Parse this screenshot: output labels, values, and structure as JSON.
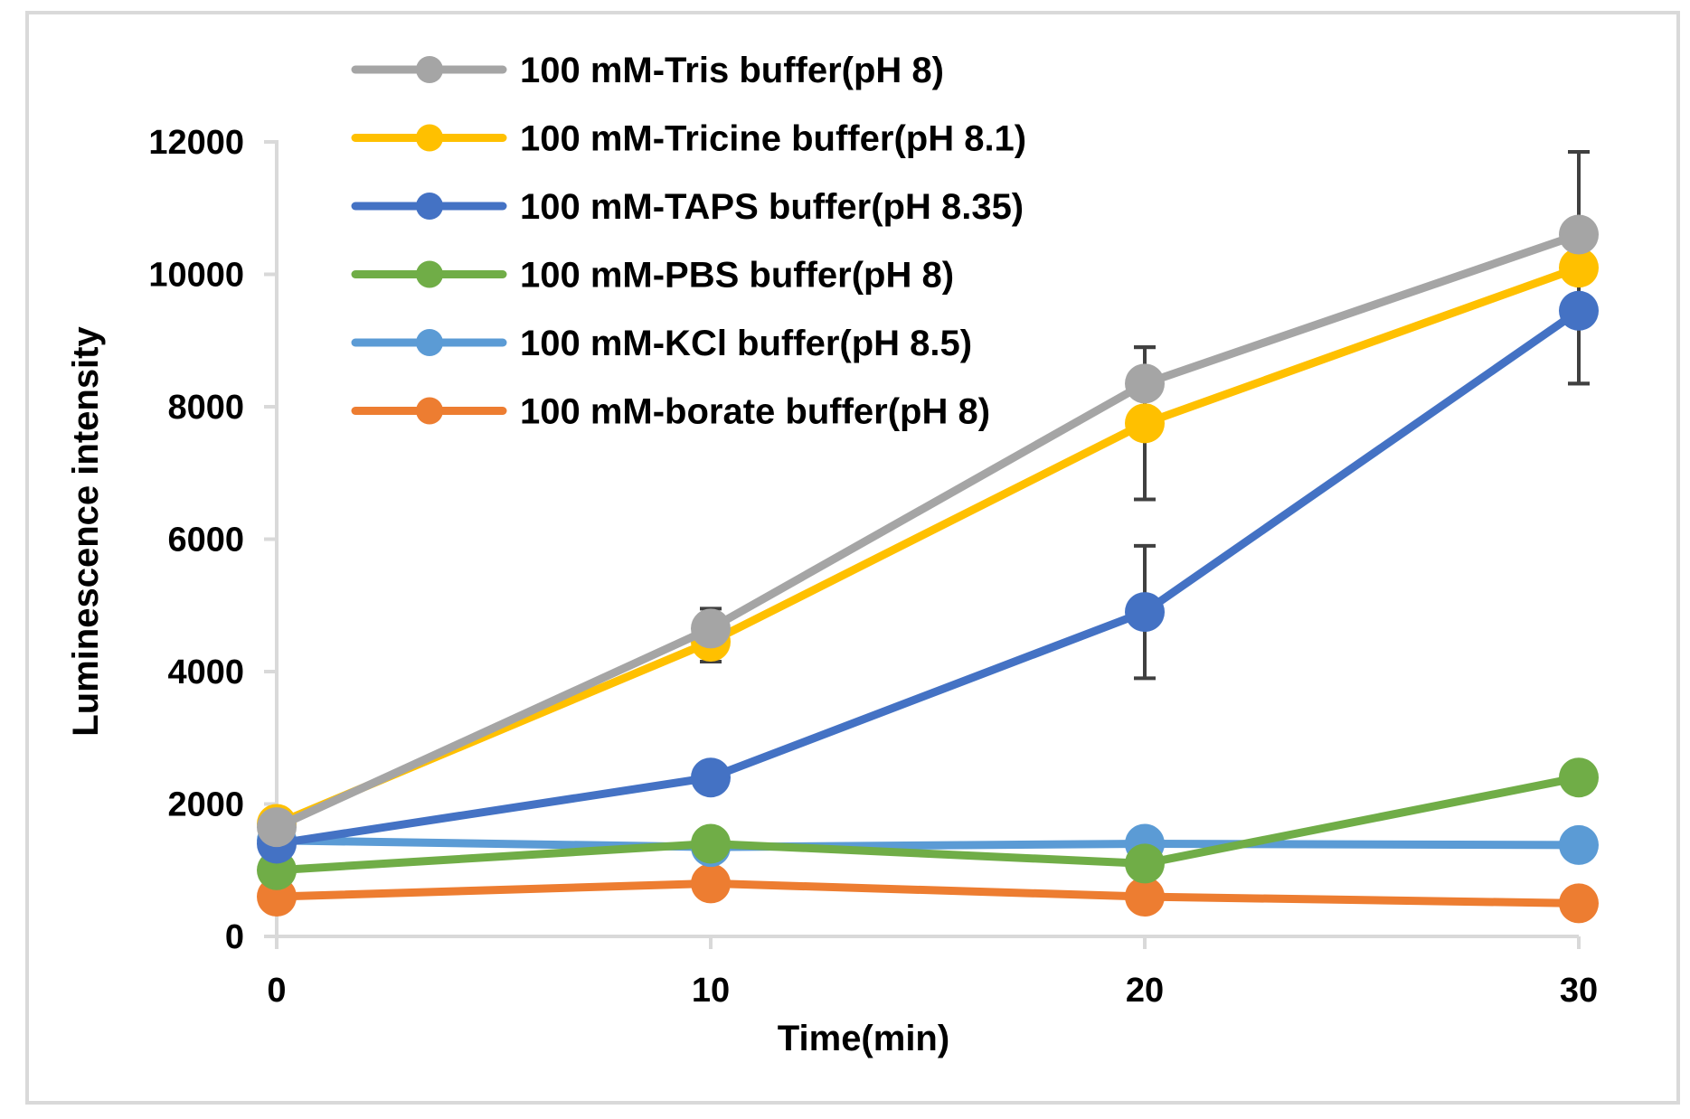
{
  "chart_data": {
    "type": "line",
    "title": "",
    "xlabel": "Time(min)",
    "ylabel": "Luminescence intensity",
    "x": [
      0,
      10,
      20,
      30
    ],
    "xlim": [
      0,
      30
    ],
    "ylim": [
      0,
      12000
    ],
    "xticks": [
      "0",
      "10",
      "20",
      "30"
    ],
    "yticks": [
      "0",
      "2000",
      "4000",
      "6000",
      "8000",
      "10000",
      "12000"
    ],
    "grid": false,
    "legend_position": "top-left",
    "series": [
      {
        "name": "100 mM-Tris buffer(pH 8)",
        "color": "#A5A5A5",
        "values": [
          1650,
          4650,
          8350,
          10600
        ],
        "error": [
          0,
          300,
          550,
          1250
        ]
      },
      {
        "name": "100 mM-Tricine buffer(pH 8.1)",
        "color": "#FFC000",
        "values": [
          1700,
          4450,
          7750,
          10100
        ],
        "error": [
          0,
          300,
          1150,
          1750
        ]
      },
      {
        "name": "100 mM-TAPS buffer(pH 8.35)",
        "color": "#4472C4",
        "values": [
          1400,
          2400,
          4900,
          9450
        ],
        "error": [
          0,
          0,
          1000,
          1100
        ]
      },
      {
        "name": "100 mM-PBS buffer(pH 8)",
        "color": "#70AD47",
        "values": [
          1000,
          1400,
          1100,
          2400
        ],
        "error": [
          0,
          0,
          0,
          0
        ]
      },
      {
        "name": "100 mM-KCl buffer(pH 8.5)",
        "color": "#5B9BD5",
        "values": [
          1450,
          1350,
          1400,
          1380
        ],
        "error": [
          0,
          0,
          0,
          0
        ]
      },
      {
        "name": "100 mM-borate buffer(pH 8)",
        "color": "#ED7D31",
        "values": [
          600,
          800,
          600,
          500
        ],
        "error": [
          0,
          0,
          0,
          0
        ]
      }
    ],
    "axis_color": "#D9D9D9",
    "error_bar_color": "#404040",
    "frame_color": "#D9D9D9"
  }
}
